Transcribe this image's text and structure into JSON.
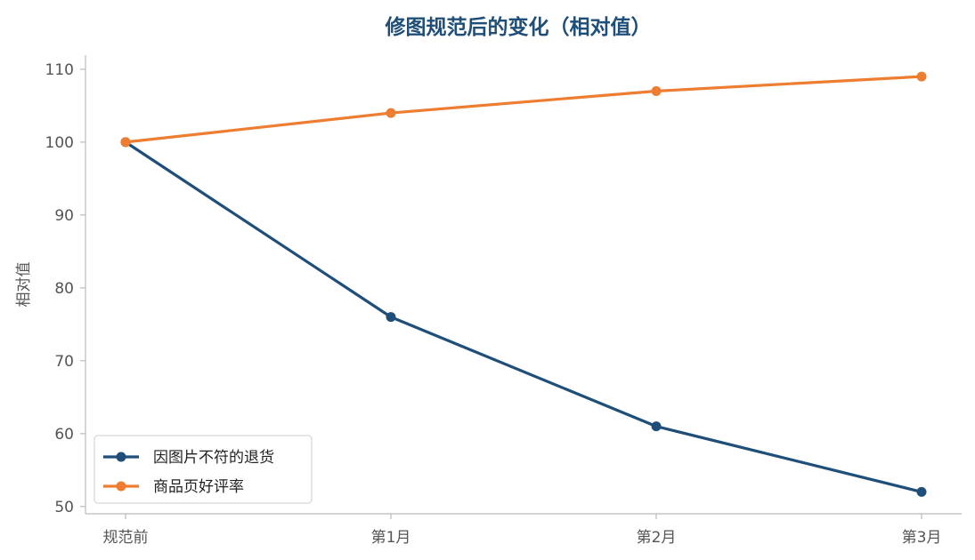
{
  "colors": {
    "title": "#1f4e79",
    "axis": "#bbbbbb",
    "tick_text": "#555555"
  },
  "chart_data": {
    "type": "line",
    "title": "修图规范后的变化（相对值）",
    "xlabel": "",
    "ylabel": "相对值",
    "categories": [
      "规范前",
      "第1月",
      "第2月",
      "第3月"
    ],
    "ylim": [
      49,
      112
    ],
    "yticks": [
      50,
      60,
      70,
      80,
      90,
      100,
      110
    ],
    "grid": false,
    "legend_position": "bottom-left",
    "series": [
      {
        "name": "因图片不符的退货",
        "color": "#1f4e79",
        "values": [
          100,
          76,
          61,
          52
        ]
      },
      {
        "name": "商品页好评率",
        "color": "#ed7d31",
        "values": [
          100,
          104,
          107,
          109
        ]
      }
    ]
  }
}
